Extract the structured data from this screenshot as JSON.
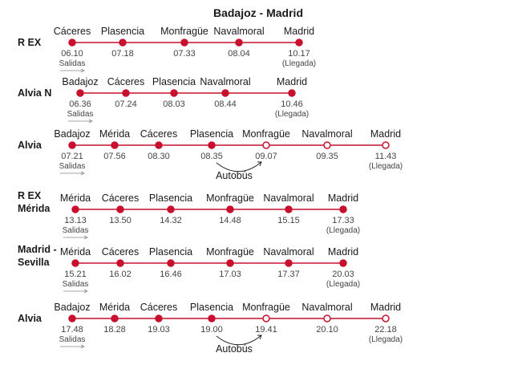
{
  "title": "Badajoz - Madrid",
  "labels": {
    "salidas": "Salidas",
    "llegada": "(Llegada)",
    "autobus": "Autobús"
  },
  "colors": {
    "line": "#c8102e",
    "text": "#1a1a1a",
    "time": "#444444",
    "arrow": "#888888"
  },
  "trains": [
    {
      "name": [
        "R EX"
      ],
      "stops": [
        {
          "station": "Cáceres",
          "time": "06.10",
          "bus": false
        },
        {
          "station": "Plasencia",
          "time": "07.18",
          "bus": false
        },
        {
          "station": "Monfragüe",
          "time": "07.33",
          "bus": false
        },
        {
          "station": "Navalmoral",
          "time": "08.04",
          "bus": false
        },
        {
          "station": "Madrid",
          "time": "10.17",
          "bus": false
        }
      ]
    },
    {
      "name": [
        "Alvia N"
      ],
      "stops": [
        {
          "station": "Badajoz",
          "time": "06.36",
          "bus": false
        },
        {
          "station": "Cáceres",
          "time": "07.24",
          "bus": false
        },
        {
          "station": "Plasencia",
          "time": "08.03",
          "bus": false
        },
        {
          "station": "Navalmoral",
          "time": "08.44",
          "bus": false
        },
        {
          "station": "Madrid",
          "time": "10.46",
          "bus": false
        }
      ]
    },
    {
      "name": [
        "Alvia"
      ],
      "stops": [
        {
          "station": "Badajoz",
          "time": "07.21",
          "bus": false
        },
        {
          "station": "Mérida",
          "time": "07.56",
          "bus": false
        },
        {
          "station": "Cáceres",
          "time": "08.30",
          "bus": false
        },
        {
          "station": "Plasencia",
          "time": "08.35",
          "bus": false
        },
        {
          "station": "Monfragüe",
          "time": "09.07",
          "bus": true
        },
        {
          "station": "Navalmoral",
          "time": "09.35",
          "bus": true
        },
        {
          "station": "Madrid",
          "time": "11.43",
          "bus": true
        }
      ]
    },
    {
      "name": [
        "R EX",
        "Mérida"
      ],
      "stops": [
        {
          "station": "Mérida",
          "time": "13.13",
          "bus": false
        },
        {
          "station": "Cáceres",
          "time": "13.50",
          "bus": false
        },
        {
          "station": "Plasencia",
          "time": "14.32",
          "bus": false
        },
        {
          "station": "Monfragüe",
          "time": "14.48",
          "bus": false
        },
        {
          "station": "Navalmoral",
          "time": "15.15",
          "bus": false
        },
        {
          "station": "Madrid",
          "time": "17.33",
          "bus": false
        }
      ]
    },
    {
      "name": [
        "Madrid -",
        "Sevilla"
      ],
      "stops": [
        {
          "station": "Mérida",
          "time": "15.21",
          "bus": false
        },
        {
          "station": "Cáceres",
          "time": "16.02",
          "bus": false
        },
        {
          "station": "Plasencia",
          "time": "16.46",
          "bus": false
        },
        {
          "station": "Monfragüe",
          "time": "17.03",
          "bus": false
        },
        {
          "station": "Navalmoral",
          "time": "17.37",
          "bus": false
        },
        {
          "station": "Madrid",
          "time": "20.03",
          "bus": false
        }
      ]
    },
    {
      "name": [
        "Alvia"
      ],
      "stops": [
        {
          "station": "Badajoz",
          "time": "17.48",
          "bus": false
        },
        {
          "station": "Mérida",
          "time": "18.28",
          "bus": false
        },
        {
          "station": "Cáceres",
          "time": "19.03",
          "bus": false
        },
        {
          "station": "Plasencia",
          "time": "19.00",
          "bus": false
        },
        {
          "station": "Monfragüe",
          "time": "19.41",
          "bus": true
        },
        {
          "station": "Navalmoral",
          "time": "20.10",
          "bus": true
        },
        {
          "station": "Madrid",
          "time": "22.18",
          "bus": true
        }
      ]
    }
  ]
}
